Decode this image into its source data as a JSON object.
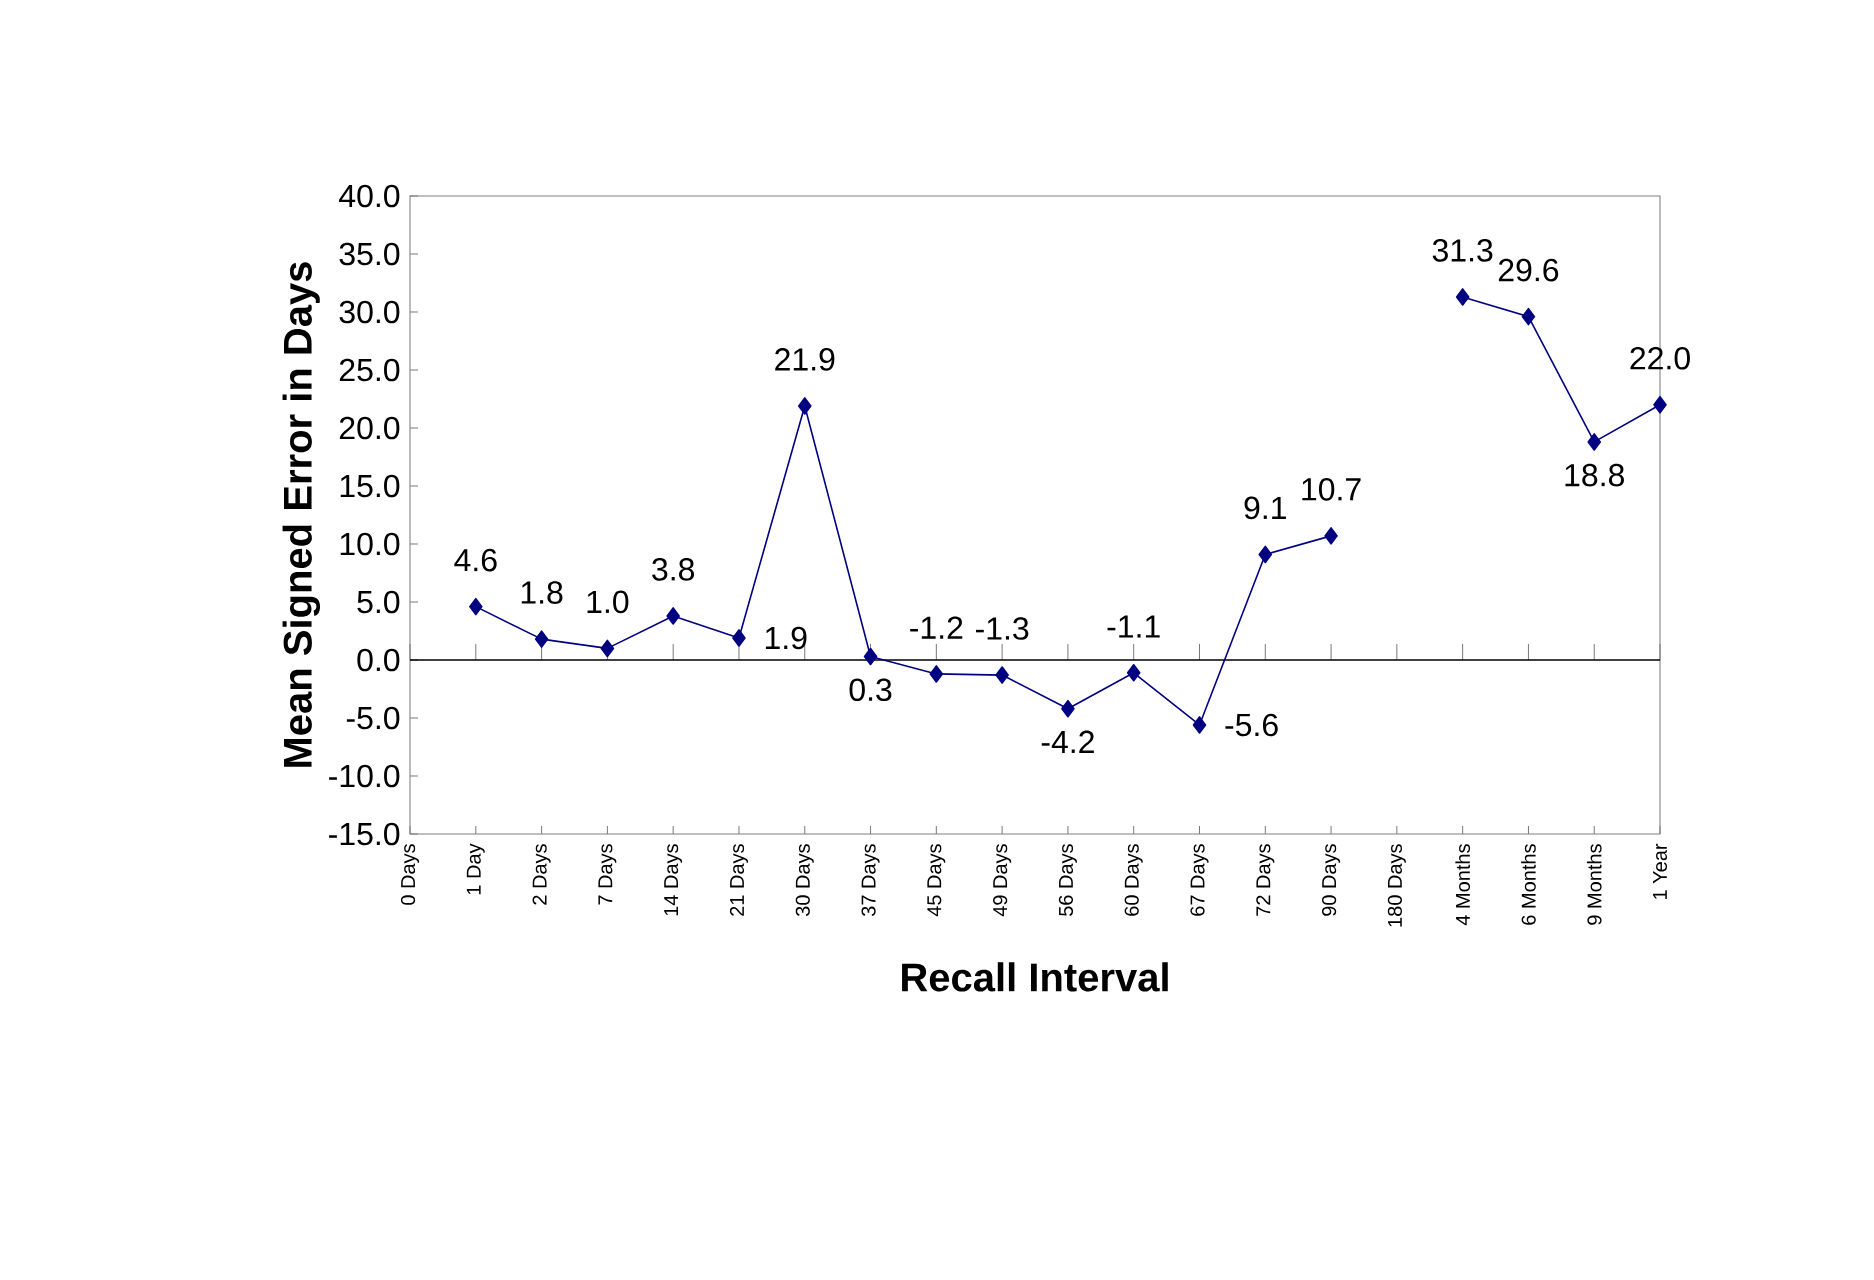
{
  "chart_data": {
    "type": "line",
    "xlabel": "Recall Interval",
    "ylabel": "Mean Signed Error in Days",
    "categories": [
      "0 Days",
      "1 Day",
      "2 Days",
      "7 Days",
      "14 Days",
      "21 Days",
      "30 Days",
      "37 Days",
      "45 Days",
      "49 Days",
      "56 Days",
      "60 Days",
      "67 Days",
      "72 Days",
      "90 Days",
      "180 Days",
      "4 Months",
      "6 Months",
      "9 Months",
      "1 Year"
    ],
    "series": [
      {
        "color": "#000080",
        "values": [
          null,
          4.6,
          1.8,
          1.0,
          3.8,
          1.9,
          21.9,
          0.3,
          -1.2,
          -1.3,
          -4.2,
          -1.1,
          -5.6,
          9.1,
          10.7,
          null,
          31.3,
          29.6,
          18.8,
          22.0
        ],
        "value_labels": [
          null,
          "4.6",
          "1.8",
          "1.0",
          "3.8",
          "1.9",
          "21.9",
          "0.3",
          "-1.2",
          "-1.3",
          "-4.2",
          "-1.1",
          "-5.6",
          "9.1",
          "10.7",
          null,
          "31.3",
          "29.6",
          "18.8",
          "22.0"
        ]
      }
    ],
    "ylim": [
      -15,
      40
    ],
    "yticks": [
      {
        "value": -15,
        "label": "-15.0"
      },
      {
        "value": -10,
        "label": "-10.0"
      },
      {
        "value": -5,
        "label": "-5.0"
      },
      {
        "value": 0,
        "label": "0.0"
      },
      {
        "value": 5,
        "label": "5.0"
      },
      {
        "value": 10,
        "label": "10.0"
      },
      {
        "value": 15,
        "label": "15.0"
      },
      {
        "value": 20,
        "label": "20.0"
      },
      {
        "value": 25,
        "label": "25.0"
      },
      {
        "value": 30,
        "label": "30.0"
      },
      {
        "value": 35,
        "label": "35.0"
      },
      {
        "value": 40,
        "label": "40.0"
      }
    ],
    "ref_lines": [
      {
        "axis": "y",
        "value": 0,
        "color": "#000000"
      }
    ],
    "marker": "diamond",
    "line_style": "solid",
    "legend": false,
    "grid": false
  }
}
